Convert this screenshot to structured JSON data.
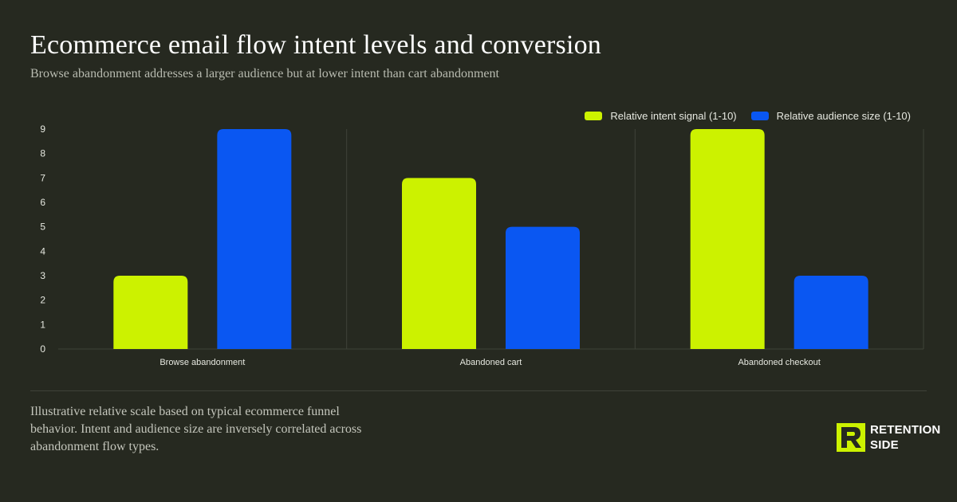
{
  "title": "Ecommerce email flow intent levels and conversion",
  "subtitle": "Browse abandonment addresses a larger audience but at lower intent than cart abandonment",
  "footnote": "Illustrative relative scale based on typical ecommerce funnel behavior. Intent and audience size are inversely correlated across abandonment flow types.",
  "brand": {
    "line1": "RETENTION",
    "line2": "SIDE",
    "logo_icon": "retention-side-logo-icon"
  },
  "colors": {
    "background": "#262920",
    "intent": "#ccf200",
    "audience": "#0a57f2",
    "grid": "#3f4238",
    "axis_text": "#e6e8e0"
  },
  "chart_data": {
    "type": "bar",
    "categories": [
      "Browse abandonment",
      "Abandoned cart",
      "Abandoned checkout"
    ],
    "series": [
      {
        "name": "Relative intent signal (1-10)",
        "color": "#ccf200",
        "values": [
          3,
          7,
          9
        ]
      },
      {
        "name": "Relative audience size (1-10)",
        "color": "#0a57f2",
        "values": [
          9,
          5,
          3
        ]
      }
    ],
    "ylim": [
      0,
      9
    ],
    "yticks": [
      0,
      1,
      2,
      3,
      4,
      5,
      6,
      7,
      8,
      9
    ],
    "legend_position": "top-right",
    "grid": false
  }
}
